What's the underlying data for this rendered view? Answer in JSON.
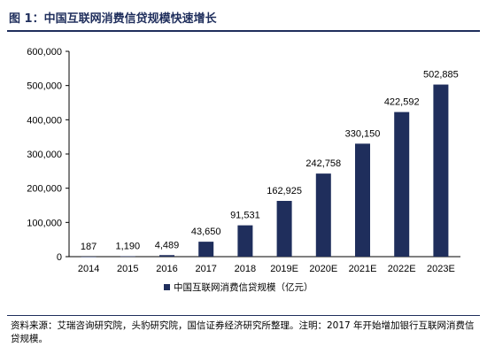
{
  "figure": {
    "title": "图 1：中国互联网消费信贷规模快速增长"
  },
  "chart_data": {
    "type": "bar",
    "categories": [
      "2014",
      "2015",
      "2016",
      "2017",
      "2018",
      "2019E",
      "2020E",
      "2021E",
      "2022E",
      "2023E"
    ],
    "series": [
      {
        "name": "中国互联网消费信贷规模（亿元）",
        "values": [
          187,
          1190,
          4489,
          43650,
          91531,
          162925,
          242758,
          330150,
          422592,
          502885
        ],
        "data_labels": [
          "187",
          "1,190",
          "4,489",
          "43,650",
          "91,531",
          "162,925",
          "242,758",
          "330,150",
          "422,592",
          "502,885"
        ],
        "color": "#1f2e5c"
      }
    ],
    "ylim": [
      0,
      600000
    ],
    "yticks": [
      0,
      100000,
      200000,
      300000,
      400000,
      500000,
      600000
    ],
    "ytick_labels": [
      "0",
      "100,000",
      "200,000",
      "300,000",
      "400,000",
      "500,000",
      "600,000"
    ],
    "xlabel": "",
    "ylabel": "",
    "grid": false,
    "legend_position": "bottom"
  },
  "source": {
    "text": "资料来源：艾瑞咨询研究院，头豹研究院，国信证券经济研究所整理。注明：2017 年开始增加银行互联网消费信贷规模。"
  }
}
